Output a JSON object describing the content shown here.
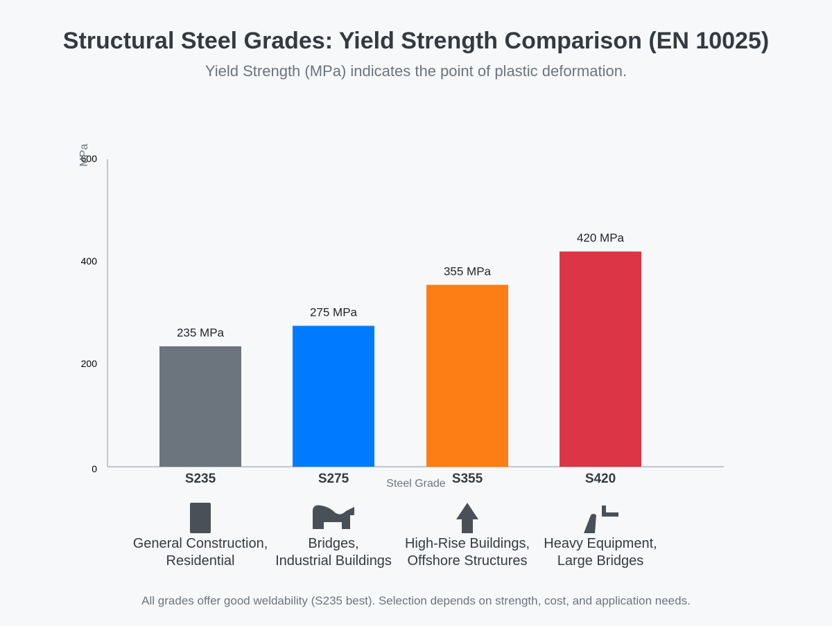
{
  "title": "Structural Steel Grades: Yield Strength Comparison (EN 10025)",
  "subtitle": "Yield Strength (MPa) indicates the point of plastic deformation.",
  "chart_data": {
    "type": "bar",
    "categories": [
      "S235",
      "S275",
      "S355",
      "S420"
    ],
    "values": [
      235,
      275,
      355,
      420
    ],
    "value_labels": [
      "235 MPa",
      "275 MPa",
      "355 MPa",
      "420 MPa"
    ],
    "colors": [
      "#6c757d",
      "#007bff",
      "#fd7e14",
      "#dc3545"
    ],
    "xlabel": "Steel Grade",
    "ylabel": "MPa",
    "ylim": [
      0,
      600
    ],
    "yticks": [
      "0",
      "200",
      "400",
      "600"
    ],
    "grid": false,
    "legend": "none"
  },
  "applications": [
    {
      "lines": [
        "General Construction,",
        "Residential"
      ],
      "icon": "column-icon"
    },
    {
      "lines": [
        "Bridges,",
        "Industrial Buildings"
      ],
      "icon": "bridge-icon"
    },
    {
      "lines": [
        "High-Rise Buildings,",
        "Offshore Structures"
      ],
      "icon": "tower-icon"
    },
    {
      "lines": [
        "Heavy Equipment,",
        "Large Bridges"
      ],
      "icon": "crane-icon"
    }
  ],
  "footnote": "All grades offer good weldability (S235 best). Selection depends on strength, cost, and application needs.",
  "icon_color": "#495057"
}
